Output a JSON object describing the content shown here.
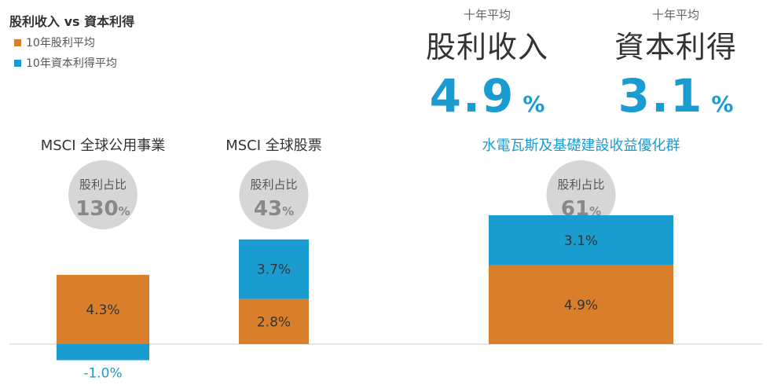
{
  "legend": {
    "title": "股利收入 vs 資本利得",
    "items": [
      {
        "label": "10年股利平均",
        "color": "#d97f2c"
      },
      {
        "label": "10年資本利得平均",
        "color": "#1a9cd0"
      }
    ]
  },
  "kpis": [
    {
      "subtitle": "十年平均",
      "title": "股利收入",
      "value": "4.9",
      "unit": "%"
    },
    {
      "subtitle": "十年平均",
      "title": "資本利得",
      "value": "3.1",
      "unit": "%"
    }
  ],
  "chart_data": {
    "type": "bar",
    "stacked": true,
    "categories": [
      "MSCI 全球公用事業",
      "MSCI 全球股票",
      "水電瓦斯及基礎建設收益優化群"
    ],
    "category_colors": [
      "#333333",
      "#333333",
      "#1a9cd0"
    ],
    "series": [
      {
        "name": "10年股利平均",
        "color": "#d97f2c",
        "values": [
          4.3,
          2.8,
          4.9
        ],
        "labels": [
          "4.3%",
          "2.8%",
          "4.9%"
        ]
      },
      {
        "name": "10年資本利得平均",
        "color": "#1a9cd0",
        "values": [
          -1.0,
          3.7,
          3.1
        ],
        "labels": [
          "-1.0%",
          "3.7%",
          "3.1%"
        ]
      }
    ],
    "circles": [
      {
        "label": "股利占比",
        "value": "130",
        "unit": "%"
      },
      {
        "label": "股利占比",
        "value": "43",
        "unit": "%"
      },
      {
        "label": "股利占比",
        "value": "61",
        "unit": "%"
      }
    ],
    "grid": false,
    "legend_position": "top-left"
  }
}
